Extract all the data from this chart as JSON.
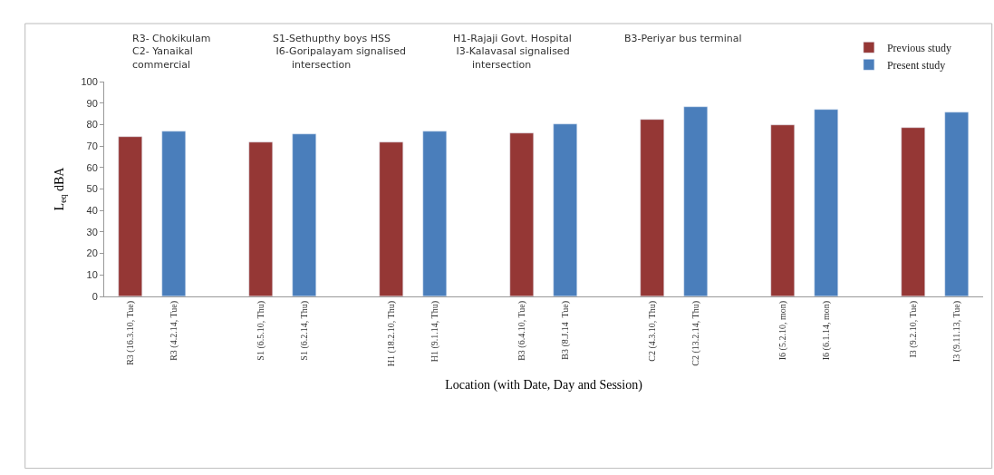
{
  "chart_data": {
    "type": "bar",
    "xlabel": "Location (with Date, Day and Session)",
    "ylabel": "L$_{eq}$ dBA",
    "categories": [
      "R3 (16.3.10, Tue)",
      "R3 (4.2.14, Tue)",
      null,
      "S1 (6.5.10, Thu)",
      "S1 (6.2.14, Thu)",
      null,
      "H1 (18.2.10, Thu)",
      "H1 (9.1.14, Thu)",
      null,
      "B3 (6.4.10, Tue)",
      "B3 (8.J.14  Tue)",
      null,
      "C2 (4.3.10, Thu)",
      "C2 (13.2.14, Thu)",
      null,
      "I6 (5.2.10, mon)",
      "I6 (6.1.14, mon)",
      null,
      "I3 (9.2.10, Tue)",
      "I3 (9.11.13, Tue)"
    ],
    "series": [
      {
        "name": "Previous study",
        "color": "#953735",
        "values": [
          74.3,
          null,
          null,
          71.7,
          null,
          null,
          71.9,
          null,
          null,
          76.1,
          null,
          null,
          82.4,
          null,
          null,
          79.6,
          null,
          null,
          78.5,
          null
        ]
      },
      {
        "name": "Present study",
        "color": "#4a7ebb",
        "values": [
          null,
          77,
          null,
          null,
          75.7,
          null,
          null,
          77,
          null,
          null,
          80.3,
          null,
          null,
          88.3,
          null,
          null,
          86.9,
          null,
          null,
          85.7
        ]
      }
    ],
    "ylim": [
      0,
      100
    ],
    "yticks": [
      0,
      10,
      20,
      30,
      40,
      50,
      60,
      70,
      80,
      90,
      100
    ],
    "legend": "top right",
    "annotations": [
      "R3- Chokikulam\nC2- Yanaikal\ncommercial",
      "S1-Sethupthy boys HSS\n I6-Goripalayam signalised\n      intersection",
      "H1-Rajaji Govt. Hospital\n I3-Kalavasal signalised\n      intersection",
      "B3-Periyar bus terminal"
    ]
  }
}
